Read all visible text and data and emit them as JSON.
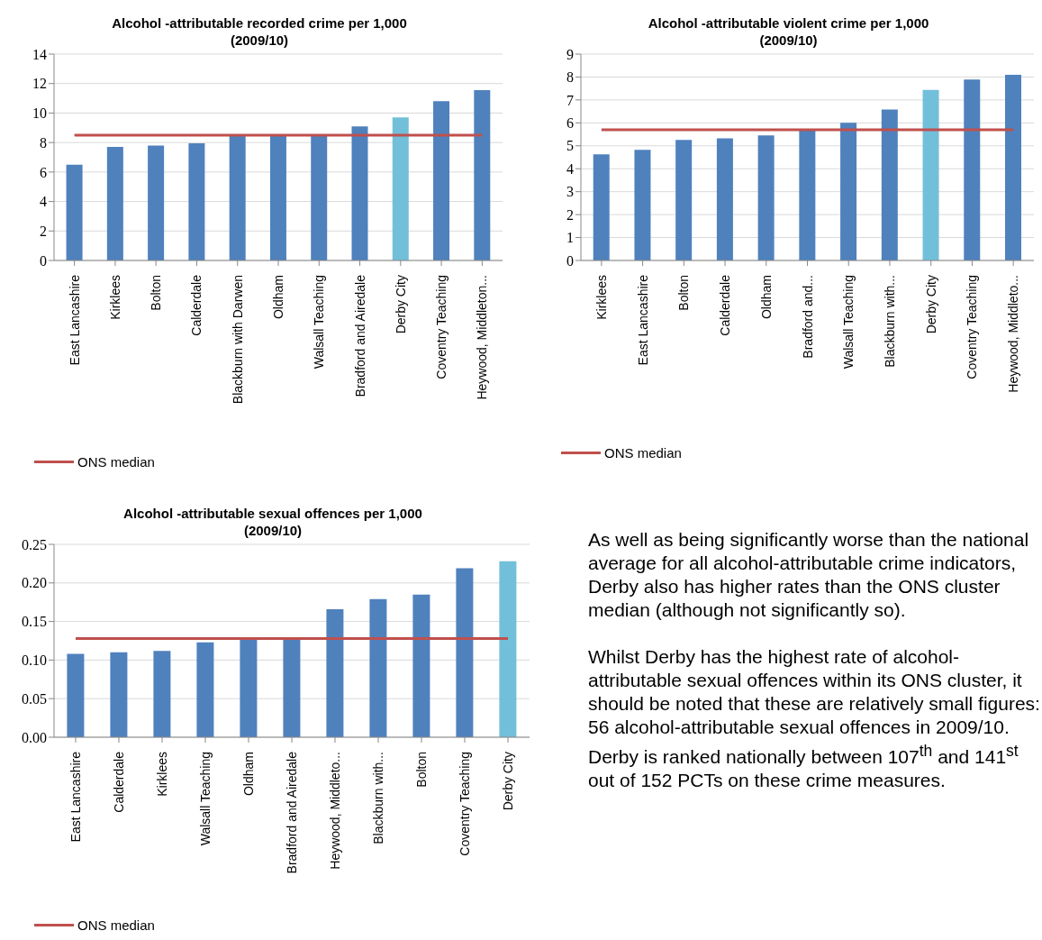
{
  "chart_data": [
    {
      "type": "bar",
      "title": "Alcohol -attributable recorded crime per 1,000\n(2009/10)",
      "categories": [
        "East Lancashire",
        "Kirklees",
        "Bolton",
        "Calderdale",
        "Blackburn with Darwen",
        "Oldham",
        "Walsall Teaching",
        "Bradford and Airedale",
        "Derby City",
        "Coventry Teaching",
        "Heywood, Middleton..."
      ],
      "values": [
        6.5,
        7.7,
        7.8,
        7.95,
        8.5,
        8.5,
        8.5,
        9.1,
        9.7,
        10.8,
        11.55
      ],
      "colors": [
        "#4f81bd",
        "#4f81bd",
        "#4f81bd",
        "#4f81bd",
        "#4f81bd",
        "#4f81bd",
        "#4f81bd",
        "#4f81bd",
        "#72bfda",
        "#4f81bd",
        "#4f81bd"
      ],
      "ylim": [
        0,
        14
      ],
      "yticks": [
        0,
        2,
        4,
        6,
        8,
        10,
        12,
        14
      ],
      "grid": "y",
      "legend": "bottom left",
      "ref_lines": [
        {
          "axis": "y",
          "value": 8.5,
          "label": "ONS median",
          "color": "#c0504d"
        }
      ]
    },
    {
      "type": "bar",
      "title": "Alcohol -attributable violent crime per 1,000\n(2009/10)",
      "categories": [
        "Kirklees",
        "East Lancashire",
        "Bolton",
        "Calderdale",
        "Oldham",
        "Bradford and...",
        "Walsall Teaching",
        "Blackburn with...",
        "Derby City",
        "Coventry Teaching",
        "Heywood, Middleto..."
      ],
      "values": [
        4.63,
        4.82,
        5.26,
        5.33,
        5.45,
        5.7,
        6.0,
        6.58,
        7.44,
        7.89,
        8.1
      ],
      "colors": [
        "#4f81bd",
        "#4f81bd",
        "#4f81bd",
        "#4f81bd",
        "#4f81bd",
        "#4f81bd",
        "#4f81bd",
        "#4f81bd",
        "#72bfda",
        "#4f81bd",
        "#4f81bd"
      ],
      "ylim": [
        0,
        9
      ],
      "yticks": [
        0,
        1,
        2,
        3,
        4,
        5,
        6,
        7,
        8,
        9
      ],
      "grid": "y",
      "legend": "bottom left",
      "ref_lines": [
        {
          "axis": "y",
          "value": 5.7,
          "label": "ONS median",
          "color": "#c0504d"
        }
      ]
    },
    {
      "type": "bar",
      "title": "Alcohol -attributable sexual offences per 1,000\n(2009/10)",
      "categories": [
        "East Lancashire",
        "Calderdale",
        "Kirklees",
        "Walsall Teaching",
        "Oldham",
        "Bradford and Airedale",
        "Heywood,  Middleto...",
        "Blackburn with...",
        "Bolton",
        "Coventry Teaching",
        "Derby City"
      ],
      "values": [
        0.108,
        0.11,
        0.112,
        0.123,
        0.127,
        0.127,
        0.166,
        0.179,
        0.185,
        0.219,
        0.228
      ],
      "colors": [
        "#4f81bd",
        "#4f81bd",
        "#4f81bd",
        "#4f81bd",
        "#4f81bd",
        "#4f81bd",
        "#4f81bd",
        "#4f81bd",
        "#4f81bd",
        "#4f81bd",
        "#72bfda"
      ],
      "ylim": [
        0,
        0.25
      ],
      "yticks": [
        {
          "value": 0,
          "label": "0.00"
        },
        {
          "value": 0.05,
          "label": "0.05"
        },
        {
          "value": 0.1,
          "label": "0.10"
        },
        {
          "value": 0.15,
          "label": "0.15"
        },
        {
          "value": 0.2,
          "label": "0.20"
        },
        {
          "value": 0.25,
          "label": "0.25"
        }
      ],
      "grid": "y",
      "legend": "bottom left",
      "ref_lines": [
        {
          "axis": "y",
          "value": 0.128,
          "label": "ONS median",
          "color": "#c0504d"
        }
      ]
    },
    {
      "type": "other",
      "annotations": [
        "As well as being significantly worse than the national average for all alcohol-attributable crime indicators, Derby also has higher rates than the ONS cluster median (although not significantly so).",
        "Whilst Derby has the highest rate of alcohol-attributable sexual offences within its ONS cluster, it should be noted that these are relatively small figures: 56 alcohol-attributable sexual offences in 2009/10.  Derby is ranked nationally between 107$^{th}$ and 141$^{st}$ out of 152 PCTs on these crime measures."
      ]
    }
  ]
}
